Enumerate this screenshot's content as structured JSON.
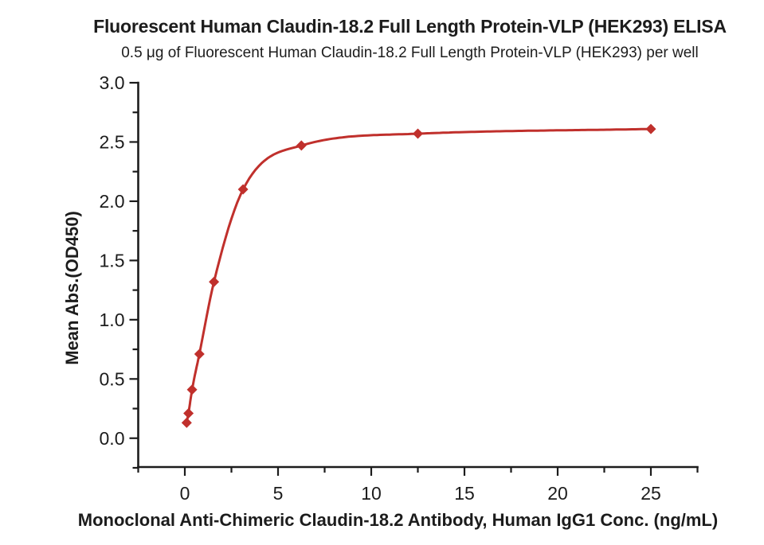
{
  "chart_data": {
    "type": "scatter",
    "title": "Fluorescent Human Claudin-18.2 Full Length Protein-VLP (HEK293) ELISA",
    "subtitle": "0.5 μg of Fluorescent Human Claudin-18.2 Full Length Protein-VLP (HEK293) per well",
    "xlabel": "Monoclonal Anti-Chimeric Claudin-18.2 Antibody, Human IgG1 Conc. (ng/mL)",
    "ylabel": "Mean Abs.(OD450)",
    "series": [
      {
        "x": [
          0.098,
          0.195,
          0.39,
          0.78,
          1.5625,
          3.125,
          6.25,
          12.5,
          25
        ],
        "y": [
          0.13,
          0.21,
          0.41,
          0.71,
          1.32,
          2.1,
          2.47,
          2.57,
          2.61
        ],
        "marker": "diamond",
        "line": "smooth-fit",
        "color": "#c0302c"
      }
    ],
    "xlim": [
      -2.5,
      27.5
    ],
    "ylim": [
      -0.25,
      3.0
    ],
    "x_ticks": [
      0,
      5,
      10,
      15,
      20,
      25
    ],
    "x_tick_labels": [
      "0",
      "5",
      "10",
      "15",
      "20",
      "25"
    ],
    "x_minor_step": 2.5,
    "y_ticks": [
      0,
      0.5,
      1,
      1.5,
      2,
      2.5,
      3
    ],
    "y_tick_labels": [
      "0.0",
      "0.5",
      "1.0",
      "1.5",
      "2.0",
      "2.5",
      "3.0"
    ],
    "y_minor_step": 0.25,
    "grid": false,
    "legend": "none",
    "axis_color": "#1c1c1c",
    "text_color": "#1c1c1c",
    "background": "#ffffff"
  }
}
